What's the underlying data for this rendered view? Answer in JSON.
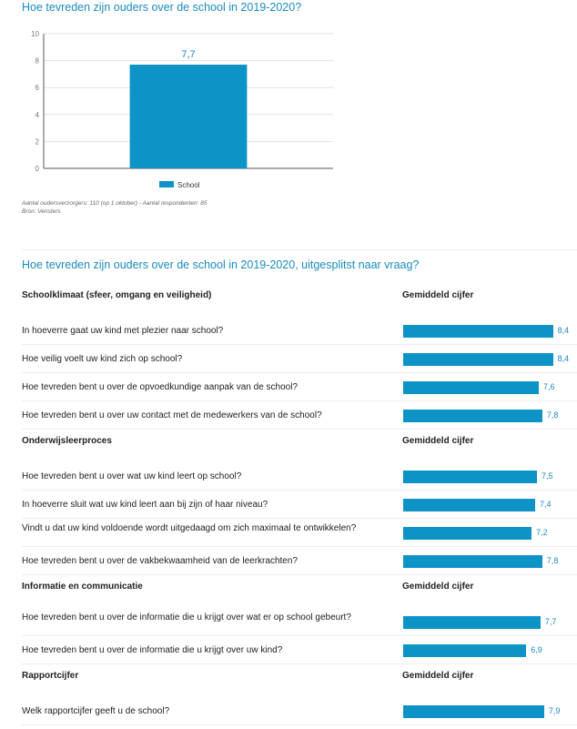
{
  "chart_data": {
    "type": "bar",
    "title": "Hoe tevreden zijn ouders over de school in 2019-2020?",
    "categories": [
      "School"
    ],
    "values": [
      7.7
    ],
    "value_labels": [
      "7,7"
    ],
    "ylim": [
      0,
      10
    ],
    "yticks": [
      0,
      2,
      4,
      6,
      8,
      10
    ],
    "grid": true,
    "legend": "bottom",
    "series": [
      {
        "name": "School",
        "values": [
          7.7
        ]
      }
    ],
    "color": "#0d93c6"
  },
  "notes": {
    "line1": "Aantal oudersverzorgers: 110 (op 1 oktober) - Aantal respondenten: 85",
    "line2": "Bron: Vensters"
  },
  "breakdown": {
    "title": "Hoe tevreden zijn ouders over de school in 2019-2020, uitgesplitst naar vraag?",
    "max": 10,
    "sections": [
      {
        "title": "Schoolklimaat (sfeer, omgang en veiligheid)",
        "avg_label": "Gemiddeld cijfer",
        "questions": [
          {
            "text": "In hoeverre gaat uw kind met plezier naar school?",
            "value": 8.4,
            "label": "8,4"
          },
          {
            "text": "Hoe veilig voelt uw kind zich op school?",
            "value": 8.4,
            "label": "8,4"
          },
          {
            "text": "Hoe tevreden bent u over de opvoedkundige aanpak van de school?",
            "value": 7.6,
            "label": "7,6"
          },
          {
            "text": "Hoe tevreden bent u over uw contact met de medewerkers van de school?",
            "value": 7.8,
            "label": "7,8"
          }
        ]
      },
      {
        "title": "Onderwijsleerproces",
        "avg_label": "Gemiddeld cijfer",
        "questions": [
          {
            "text": "Hoe tevreden bent u over wat uw kind leert op school?",
            "value": 7.5,
            "label": "7,5"
          },
          {
            "text": "In hoeverre sluit wat uw kind leert aan bij zijn of haar niveau?",
            "value": 7.4,
            "label": "7,4"
          },
          {
            "text": "Vindt u dat uw kind voldoende wordt uitgedaagd om zich maximaal te ontwikkelen?",
            "value": 7.2,
            "label": "7,2"
          },
          {
            "text": "Hoe tevreden bent u over de vakbekwaamheid van de leerkrachten?",
            "value": 7.8,
            "label": "7,8"
          }
        ]
      },
      {
        "title": "Informatie en communicatie",
        "avg_label": "Gemiddeld cijfer",
        "questions": [
          {
            "text": "Hoe tevreden bent u over de informatie die u krijgt over wat er op school gebeurt?",
            "value": 7.7,
            "label": "7,7"
          },
          {
            "text": "Hoe tevreden bent u over de informatie die u krijgt over uw kind?",
            "value": 6.9,
            "label": "6,9"
          }
        ]
      },
      {
        "title": "Rapportcijfer",
        "avg_label": "Gemiddeld cijfer",
        "questions": [
          {
            "text": "Welk rapportcijfer geeft u de school?",
            "value": 7.9,
            "label": "7,9"
          }
        ]
      }
    ]
  }
}
